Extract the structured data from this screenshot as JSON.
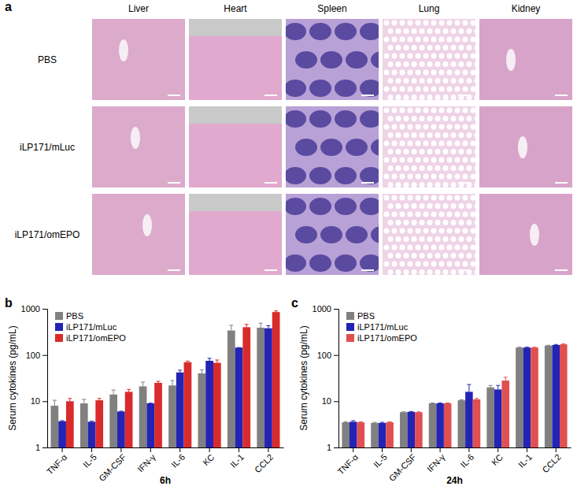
{
  "panel_labels": [
    "a",
    "b",
    "c"
  ],
  "histology": {
    "columns": [
      "Liver",
      "Heart",
      "Spleen",
      "Lung",
      "Kidney"
    ],
    "rows": [
      "PBS",
      "iLP171/mLuc",
      "iLP171/omEPO"
    ]
  },
  "chart_data": [
    {
      "type": "bar",
      "x_label": "6h",
      "y_label": "Serum cytokines (pg/mL)",
      "categories": [
        "TNF-α",
        "IL-5",
        "GM-CSF",
        "IFN-γ",
        "IL-6",
        "KC",
        "IL-1",
        "CCL2"
      ],
      "series": [
        {
          "name": "PBS",
          "color": "#808080",
          "values": [
            8,
            9,
            14,
            21,
            22,
            40,
            340,
            390
          ],
          "errors": [
            2.5,
            2,
            3.5,
            5,
            6,
            8,
            100,
            100
          ]
        },
        {
          "name": "iLP171/mLuc",
          "color": "#2323b5",
          "values": [
            3.7,
            3.6,
            6,
            9,
            42,
            75,
            145,
            380
          ],
          "errors": [
            0.1,
            0.1,
            0.1,
            0.1,
            5,
            10,
            0.1,
            50
          ]
        },
        {
          "name": "iLP171/omEPO",
          "color": "#d92b2b",
          "values": [
            10,
            10.5,
            16,
            25,
            70,
            68,
            400,
            850
          ],
          "errors": [
            1.5,
            1,
            2,
            2,
            4,
            10,
            60,
            50
          ]
        }
      ],
      "ylim": [
        1,
        1000
      ],
      "yticks": [
        1,
        10,
        100,
        1000
      ],
      "log": "y",
      "legend": "top-left"
    },
    {
      "type": "bar",
      "x_label": "24h",
      "y_label": "Serum cytokines (pg/mL)",
      "categories": [
        "TNF-α",
        "IL-5",
        "GM-CSF",
        "IFN-γ",
        "IL-6",
        "KC",
        "IL-1",
        "CCL2"
      ],
      "series": [
        {
          "name": "PBS",
          "color": "#808080",
          "values": [
            3.5,
            3.4,
            5.8,
            9,
            10.5,
            20,
            145,
            160
          ],
          "errors": [
            0.1,
            0.1,
            0.1,
            0.2,
            0.3,
            2,
            3,
            3
          ]
        },
        {
          "name": "iLP171/mLuc",
          "color": "#2323b5",
          "values": [
            3.6,
            3.4,
            5.9,
            9,
            16,
            18,
            145,
            165
          ],
          "errors": [
            0.2,
            0.1,
            0.1,
            0.2,
            7,
            4,
            3,
            4
          ]
        },
        {
          "name": "iLP171/omEPO",
          "color": "#e05050",
          "values": [
            3.5,
            3.5,
            5.8,
            9,
            11,
            28,
            145,
            170
          ],
          "errors": [
            0.1,
            0.1,
            0.1,
            0.2,
            0.5,
            5,
            3,
            4
          ]
        }
      ],
      "ylim": [
        1,
        1000
      ],
      "yticks": [
        1,
        10,
        100,
        1000
      ],
      "log": "y",
      "legend": "top-left"
    }
  ]
}
